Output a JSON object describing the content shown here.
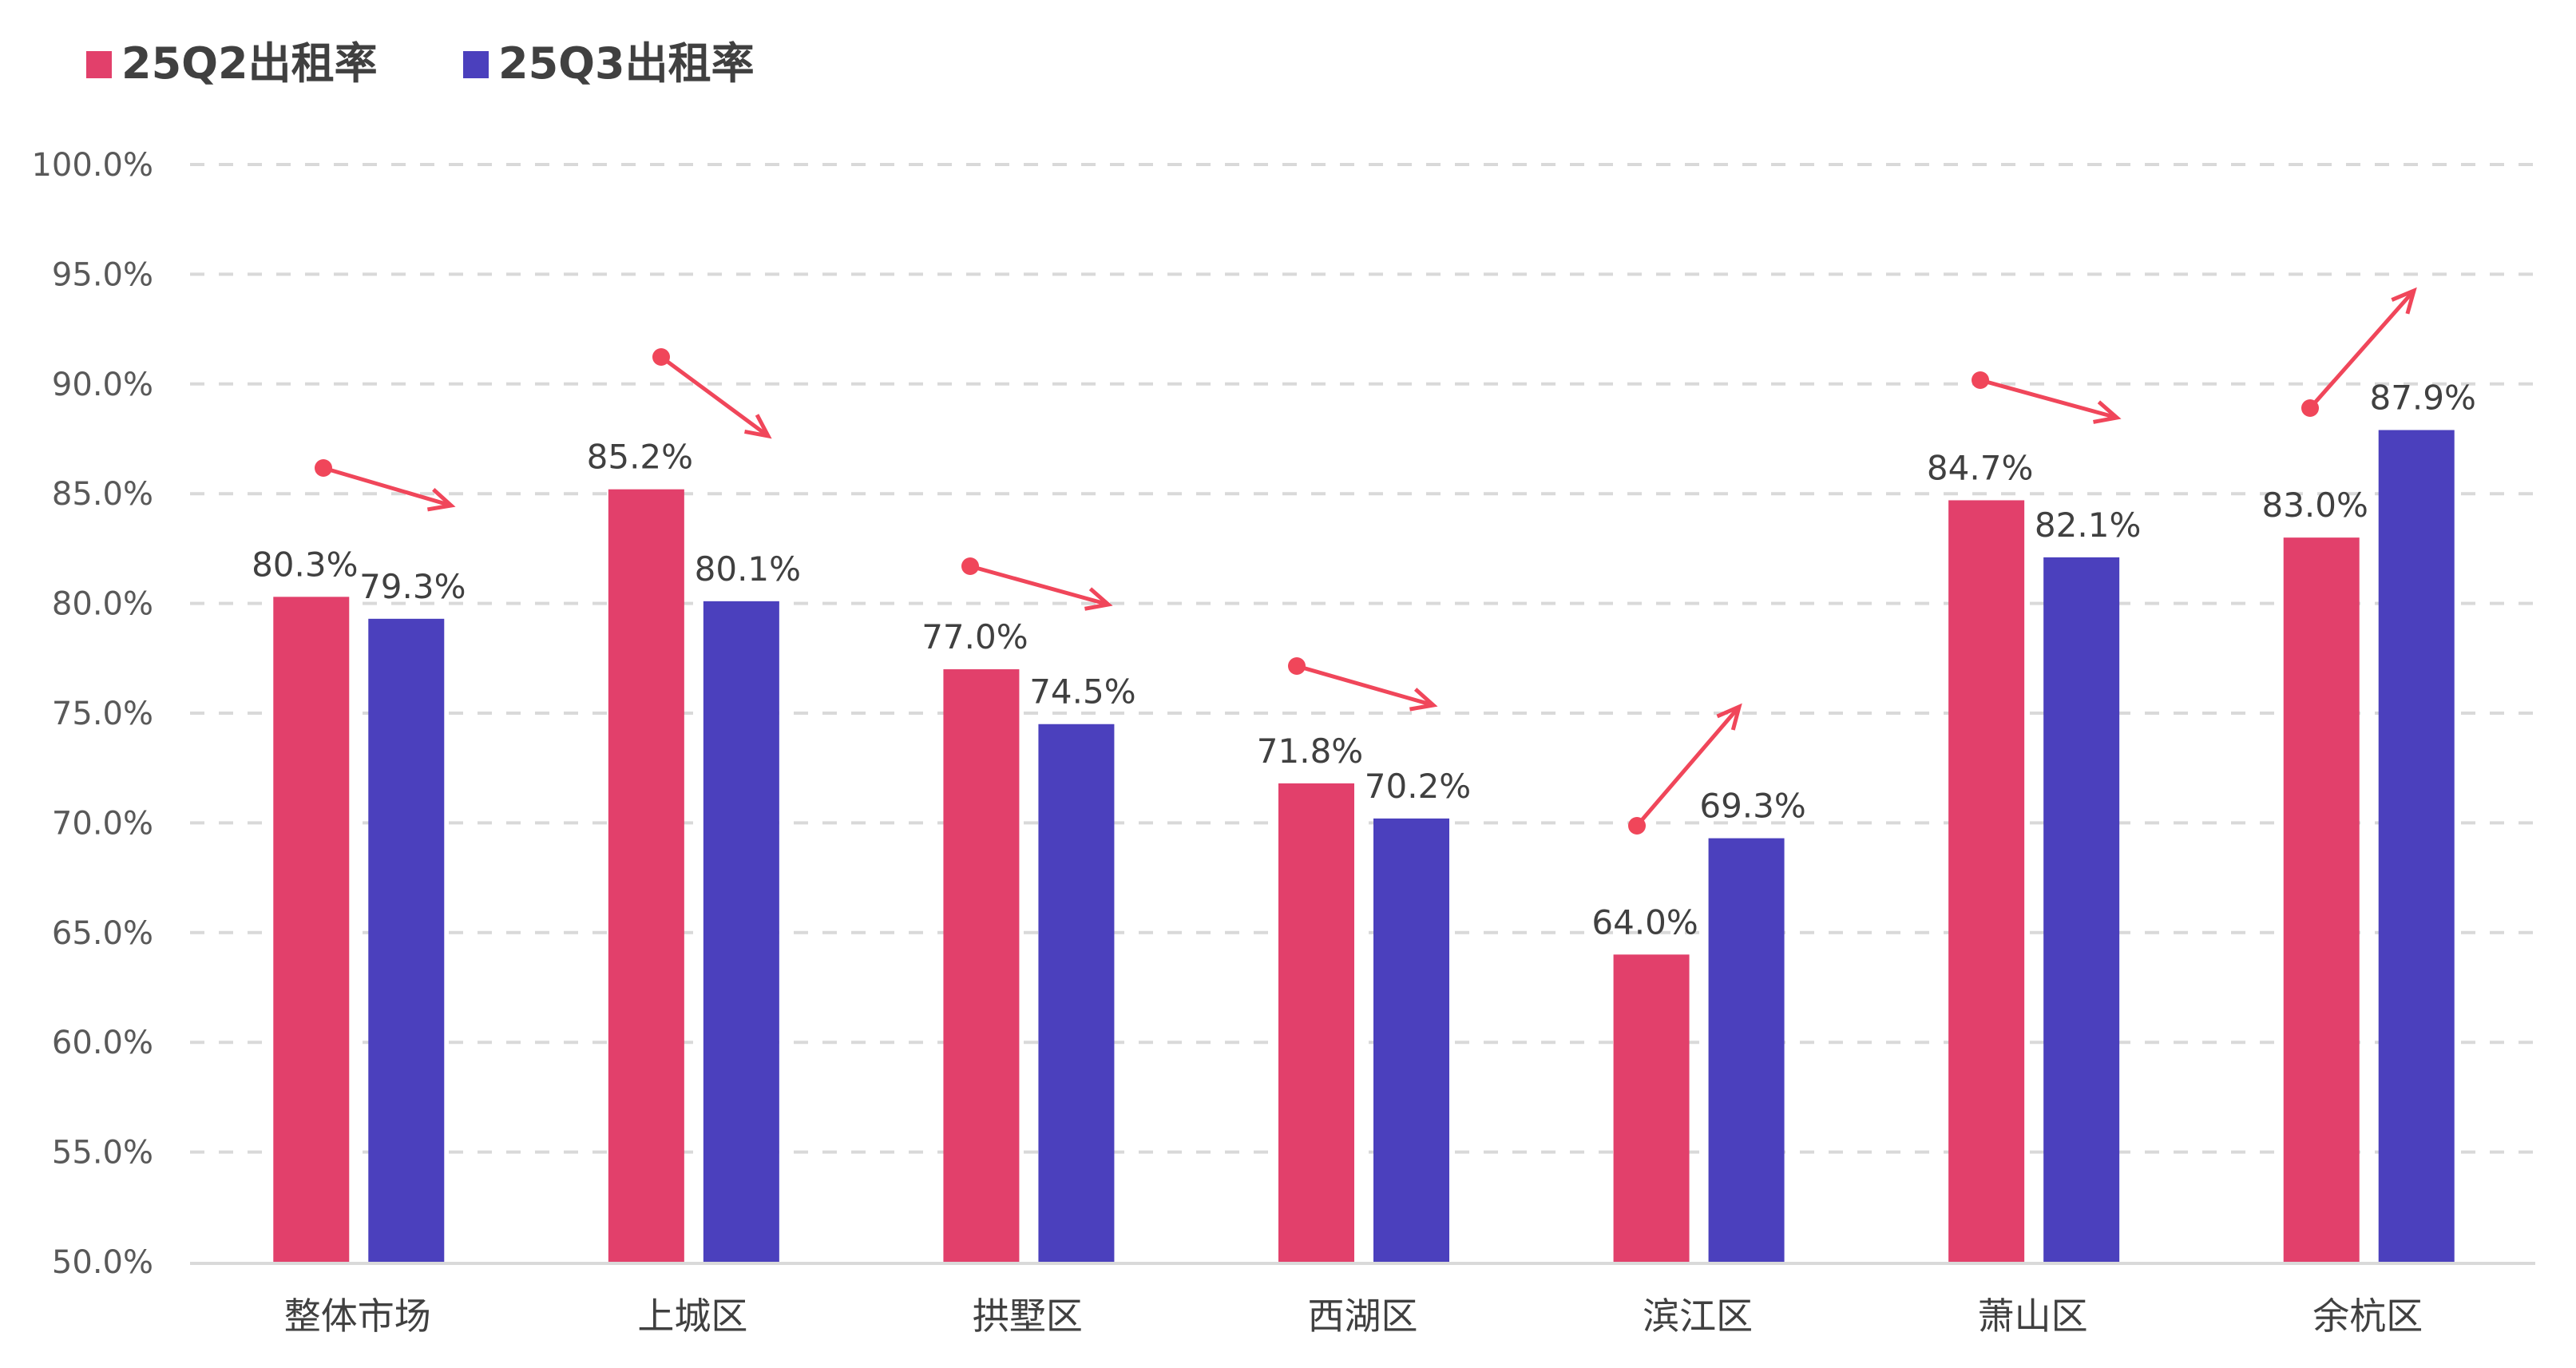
{
  "chart_data": {
    "type": "bar",
    "title": "",
    "xlabel": "",
    "ylabel": "",
    "ylim": [
      50,
      100
    ],
    "y_ticks": [
      "50.0%",
      "55.0%",
      "60.0%",
      "65.0%",
      "70.0%",
      "75.0%",
      "80.0%",
      "85.0%",
      "90.0%",
      "95.0%",
      "100.0%"
    ],
    "grid": true,
    "legend_position": "top-left",
    "categories": [
      "整体市场",
      "上城区",
      "拱墅区",
      "西湖区",
      "滨江区",
      "萧山区",
      "余杭区"
    ],
    "series": [
      {
        "name": "25Q2出租率",
        "color": "#E2406B",
        "values": [
          80.3,
          85.2,
          77.0,
          71.8,
          64.0,
          84.7,
          83.0
        ],
        "labels": [
          "80.3%",
          "85.2%",
          "77.0%",
          "71.8%",
          "64.0%",
          "84.7%",
          "83.0%"
        ]
      },
      {
        "name": "25Q3出租率",
        "color": "#4B40BD",
        "values": [
          79.3,
          80.1,
          74.5,
          70.2,
          69.3,
          82.1,
          87.9
        ],
        "labels": [
          "79.3%",
          "80.1%",
          "74.5%",
          "70.2%",
          "69.3%",
          "82.1%",
          "87.9%"
        ]
      }
    ],
    "trend_arrows": [
      "down",
      "down",
      "down",
      "down",
      "up",
      "down",
      "up"
    ],
    "arrow_color": "#F0465A"
  }
}
